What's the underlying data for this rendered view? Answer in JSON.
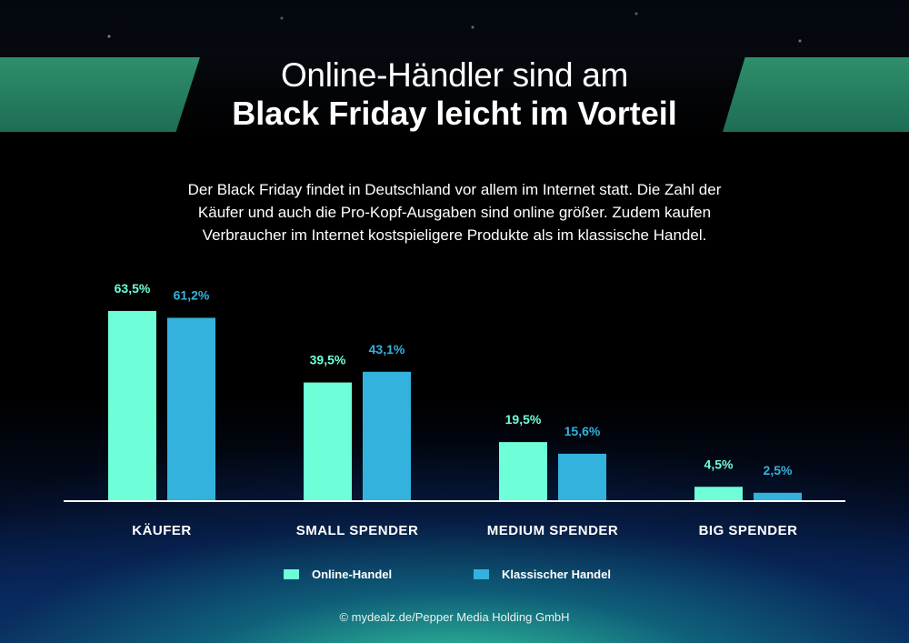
{
  "title": {
    "line1": "Online-Händler sind am",
    "line2": "Black Friday leicht im Vorteil"
  },
  "intro": [
    "Der Black Friday findet in Deutschland vor allem im Internet statt. Die Zahl der",
    "Käufer und auch die Pro-Kopf-Ausgaben sind online größer. Zudem kaufen",
    "Verbraucher im Internet kostspieligere Produkte als im klassische Handel."
  ],
  "chart_data": {
    "type": "bar",
    "categories": [
      "KÄUFER",
      "SMALL SPENDER",
      "MEDIUM SPENDER",
      "BIG SPENDER"
    ],
    "series": [
      {
        "name": "Online-Handel",
        "color": "#6effd9",
        "values": [
          63.5,
          39.5,
          19.5,
          4.5
        ],
        "labels": [
          "63,5%",
          "39,5%",
          "19,5%",
          "4,5%"
        ]
      },
      {
        "name": "Klassischer Handel",
        "color": "#33b2dd",
        "values": [
          61.2,
          43.1,
          15.6,
          2.5
        ],
        "labels": [
          "61,2%",
          "43,1%",
          "15,6%",
          "2,5%"
        ]
      }
    ],
    "ylim": [
      0,
      65
    ],
    "grid": false,
    "legend_position": "bottom"
  },
  "footer": {
    "credit": "© mydealz.de/Pepper Media Holding GmbH"
  }
}
